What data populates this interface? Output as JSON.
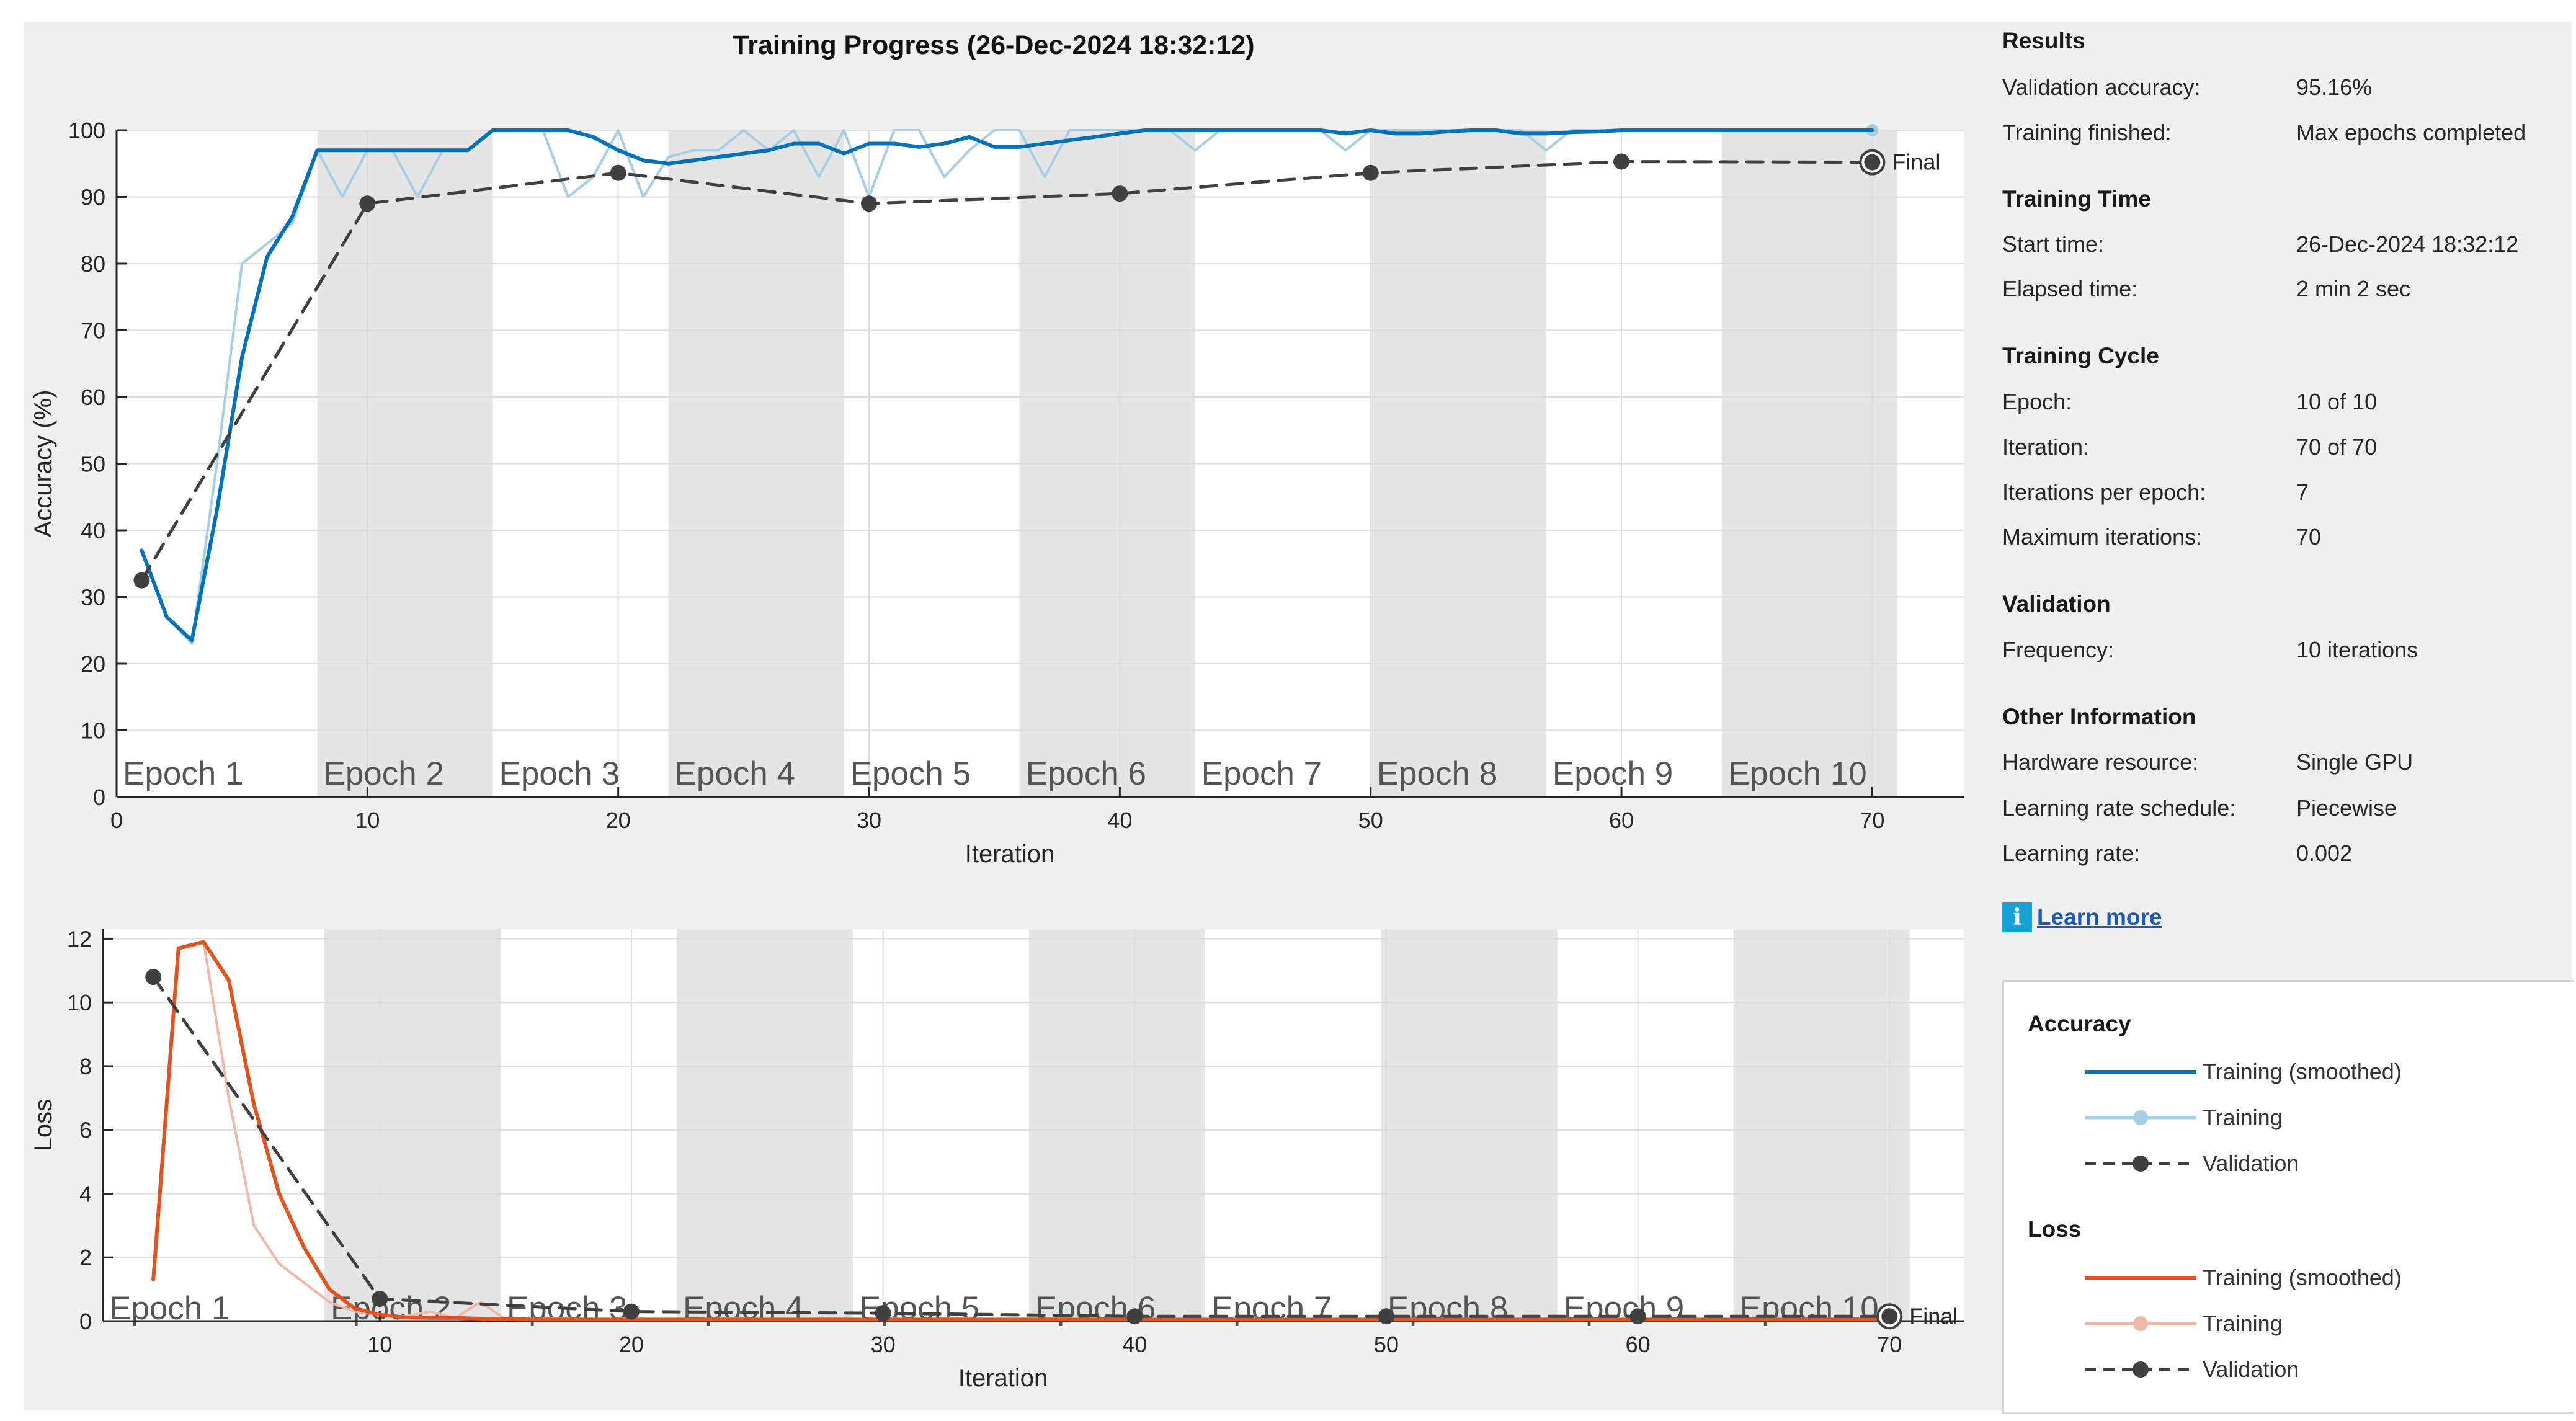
{
  "title": "Training Progress (26-Dec-2024 18:32:12)",
  "colors": {
    "acc_smoothed": "#0072bd",
    "acc_training": "#a6cfe6",
    "loss_smoothed": "#e2531f",
    "loss_training": "#f2b8a6",
    "validation": "#404040",
    "epoch_shade": "#e5e5e5"
  },
  "chart_data": [
    {
      "type": "line",
      "name": "accuracy",
      "xlabel": "Iteration",
      "ylabel": "Accuracy (%)",
      "xlim": [
        0,
        73.7
      ],
      "ylim": [
        0,
        100
      ],
      "xticks": [
        0,
        10,
        20,
        30,
        40,
        50,
        60,
        70
      ],
      "yticks": [
        0,
        10,
        20,
        30,
        40,
        50,
        60,
        70,
        80,
        90,
        100
      ],
      "grid": true,
      "epoch_labels": [
        "Epoch 1",
        "Epoch 2",
        "Epoch 3",
        "Epoch 4",
        "Epoch 5",
        "Epoch 6",
        "Epoch 7",
        "Epoch 8",
        "Epoch 9",
        "Epoch 10"
      ],
      "epoch_boundaries": [
        0,
        8,
        15,
        22,
        29,
        36,
        43,
        50,
        57,
        64,
        71
      ],
      "final_label": "Final",
      "series": [
        {
          "name": "Training",
          "x": [
            1,
            2,
            3,
            4,
            5,
            6,
            7,
            8,
            9,
            10,
            11,
            12,
            13,
            14,
            15,
            16,
            17,
            18,
            19,
            20,
            21,
            22,
            23,
            24,
            25,
            26,
            27,
            28,
            29,
            30,
            31,
            32,
            33,
            34,
            35,
            36,
            37,
            38,
            39,
            40,
            41,
            42,
            43,
            44,
            45,
            46,
            47,
            48,
            49,
            50,
            51,
            52,
            53,
            54,
            55,
            56,
            57,
            58,
            59,
            60,
            61,
            62,
            63,
            64,
            65,
            66,
            67,
            68,
            69,
            70
          ],
          "values": [
            37,
            27,
            23,
            50,
            80,
            83,
            86,
            97,
            90,
            97,
            97,
            90,
            97,
            97,
            100,
            100,
            100,
            90,
            93,
            100,
            90,
            96,
            97,
            97,
            100,
            97,
            100,
            93,
            100,
            90,
            100,
            100,
            93,
            97,
            100,
            100,
            93,
            100,
            100,
            100,
            100,
            100,
            97,
            100,
            100,
            100,
            100,
            100,
            97,
            100,
            100,
            100,
            100,
            100,
            100,
            100,
            97,
            100,
            100,
            100,
            100,
            100,
            100,
            100,
            100,
            100,
            100,
            100,
            100,
            100
          ]
        },
        {
          "name": "Training (smoothed)",
          "x": [
            1,
            2,
            3,
            4,
            5,
            6,
            7,
            8,
            9,
            10,
            11,
            12,
            13,
            14,
            15,
            16,
            17,
            18,
            19,
            20,
            21,
            22,
            23,
            24,
            25,
            26,
            27,
            28,
            29,
            30,
            31,
            32,
            33,
            34,
            35,
            36,
            37,
            38,
            39,
            40,
            41,
            42,
            43,
            44,
            45,
            46,
            47,
            48,
            49,
            50,
            51,
            52,
            53,
            54,
            55,
            56,
            57,
            58,
            59,
            60,
            61,
            62,
            63,
            64,
            65,
            66,
            67,
            68,
            69,
            70
          ],
          "values": [
            37,
            27,
            23.5,
            43,
            66,
            81,
            87,
            97,
            97,
            97,
            97,
            97,
            97,
            97,
            100,
            100,
            100,
            100,
            99,
            97,
            95.5,
            95,
            95.5,
            96,
            96.5,
            97,
            98,
            98,
            96.5,
            98,
            98,
            97.5,
            98,
            99,
            97.5,
            97.5,
            98,
            98.5,
            99,
            99.5,
            100,
            100,
            100,
            100,
            100,
            100,
            100,
            100,
            99.5,
            100,
            99.5,
            99.5,
            99.8,
            100,
            100,
            99.5,
            99.5,
            99.7,
            99.8,
            100,
            100,
            100,
            100,
            100,
            100,
            100,
            100,
            100,
            100,
            100
          ]
        },
        {
          "name": "Validation",
          "x": [
            1,
            10,
            20,
            30,
            40,
            50,
            60,
            70
          ],
          "values": [
            32.5,
            89,
            93.6,
            89,
            90.5,
            93.6,
            95.3,
            95.2
          ]
        }
      ]
    },
    {
      "type": "line",
      "name": "loss",
      "xlabel": "Iteration",
      "ylabel": "Loss",
      "xlim": [
        -1,
        73
      ],
      "ylim": [
        0,
        12.3
      ],
      "xticks": [
        10,
        20,
        30,
        40,
        50,
        60,
        70
      ],
      "yticks": [
        0,
        2,
        4,
        6,
        8,
        10,
        12
      ],
      "grid": true,
      "epoch_labels": [
        "Epoch 1",
        "Epoch 2",
        "Epoch 3",
        "Epoch 4",
        "Epoch 5",
        "Epoch 6",
        "Epoch 7",
        "Epoch 8",
        "Epoch 9",
        "Epoch 10"
      ],
      "epoch_boundaries": [
        -1,
        7.8,
        14.8,
        21.8,
        28.8,
        35.8,
        42.8,
        49.8,
        56.8,
        63.8,
        70.8
      ],
      "final_label": "Final",
      "series": [
        {
          "name": "Training",
          "x": [
            1,
            2,
            3,
            4,
            5,
            6,
            7,
            8,
            9,
            10,
            11,
            12,
            13,
            14,
            15,
            16,
            17,
            18,
            19,
            20,
            21,
            22,
            23,
            24,
            25,
            26,
            27,
            28,
            29,
            30,
            31,
            32,
            33,
            34,
            35,
            36,
            37,
            38,
            39,
            40,
            41,
            42,
            43,
            44,
            45,
            46,
            47,
            48,
            49,
            50,
            51,
            52,
            53,
            54,
            55,
            56,
            57,
            58,
            59,
            60,
            61,
            62,
            63,
            64,
            65,
            66,
            67,
            68,
            69,
            70
          ],
          "values": [
            1.3,
            11.7,
            11.9,
            7,
            3,
            1.8,
            1.2,
            0.6,
            0.3,
            0.2,
            0.15,
            0.3,
            0.1,
            0.6,
            0.05,
            0.05,
            0.1,
            0.05,
            0.05,
            0.1,
            0.05,
            0.05,
            0.05,
            0.1,
            0.05,
            0.05,
            0.05,
            0.1,
            0.05,
            0.1,
            0.05,
            0.05,
            0.1,
            0.05,
            0.05,
            0.05,
            0.1,
            0.05,
            0.05,
            0.05,
            0.05,
            0.05,
            0.05,
            0.05,
            0.05,
            0.05,
            0.05,
            0.05,
            0.05,
            0.05,
            0.05,
            0.05,
            0.05,
            0.05,
            0.05,
            0.05,
            0.05,
            0.05,
            0.05,
            0.05,
            0.05,
            0.05,
            0.05,
            0.05,
            0.05,
            0.05,
            0.05,
            0.05,
            0.05,
            0.05
          ]
        },
        {
          "name": "Training (smoothed)",
          "x": [
            1,
            2,
            3,
            4,
            5,
            6,
            7,
            8,
            9,
            10,
            11,
            12,
            13,
            14,
            15,
            16,
            17,
            18,
            19,
            20,
            21,
            22,
            23,
            24,
            25,
            26,
            27,
            28,
            29,
            30,
            31,
            32,
            33,
            34,
            35,
            36,
            37,
            38,
            39,
            40,
            41,
            42,
            43,
            44,
            45,
            46,
            47,
            48,
            49,
            50,
            51,
            52,
            53,
            54,
            55,
            56,
            57,
            58,
            59,
            60,
            61,
            62,
            63,
            64,
            65,
            66,
            67,
            68,
            69,
            70
          ],
          "values": [
            1.3,
            11.7,
            11.9,
            10.7,
            6.8,
            4,
            2.3,
            1,
            0.4,
            0.2,
            0.12,
            0.1,
            0.1,
            0.08,
            0.06,
            0.05,
            0.05,
            0.05,
            0.05,
            0.05,
            0.05,
            0.05,
            0.05,
            0.05,
            0.05,
            0.05,
            0.05,
            0.05,
            0.05,
            0.05,
            0.05,
            0.05,
            0.05,
            0.05,
            0.05,
            0.05,
            0.05,
            0.05,
            0.05,
            0.05,
            0.05,
            0.05,
            0.05,
            0.05,
            0.05,
            0.05,
            0.05,
            0.05,
            0.05,
            0.05,
            0.05,
            0.05,
            0.05,
            0.05,
            0.05,
            0.05,
            0.05,
            0.05,
            0.05,
            0.05,
            0.05,
            0.05,
            0.05,
            0.05,
            0.05,
            0.05,
            0.05,
            0.05,
            0.05,
            0.05
          ]
        },
        {
          "name": "Validation",
          "x": [
            1,
            10,
            20,
            30,
            40,
            50,
            60,
            70
          ],
          "values": [
            10.8,
            0.7,
            0.3,
            0.25,
            0.15,
            0.15,
            0.15,
            0.15
          ]
        }
      ]
    }
  ],
  "panel": {
    "results": {
      "title": "Results",
      "rows": [
        {
          "label": "Validation accuracy:",
          "value": "95.16%"
        },
        {
          "label": "Training finished:",
          "value": "Max epochs completed"
        }
      ]
    },
    "training_time": {
      "title": "Training Time",
      "rows": [
        {
          "label": "Start time:",
          "value": "26-Dec-2024 18:32:12"
        },
        {
          "label": "Elapsed time:",
          "value": "2 min 2 sec"
        }
      ]
    },
    "training_cycle": {
      "title": "Training Cycle",
      "rows": [
        {
          "label": "Epoch:",
          "value": "10 of 10"
        },
        {
          "label": "Iteration:",
          "value": "70 of 70"
        },
        {
          "label": "Iterations per epoch:",
          "value": "7"
        },
        {
          "label": "Maximum iterations:",
          "value": "70"
        }
      ]
    },
    "validation": {
      "title": "Validation",
      "rows": [
        {
          "label": "Frequency:",
          "value": "10 iterations"
        }
      ]
    },
    "other": {
      "title": "Other Information",
      "rows": [
        {
          "label": "Hardware resource:",
          "value": "Single GPU"
        },
        {
          "label": "Learning rate schedule:",
          "value": "Piecewise"
        },
        {
          "label": "Learning rate:",
          "value": "0.002"
        }
      ]
    },
    "learn_more": "Learn more",
    "info_icon": "info-icon"
  },
  "legend": {
    "accuracy_title": "Accuracy",
    "loss_title": "Loss",
    "accuracy_items": [
      "Training (smoothed)",
      "Training",
      "Validation"
    ],
    "loss_items": [
      "Training (smoothed)",
      "Training",
      "Validation"
    ]
  }
}
